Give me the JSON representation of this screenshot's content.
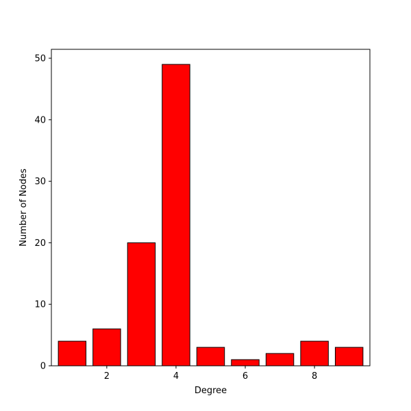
{
  "chart_data": {
    "type": "bar",
    "x": [
      1,
      2,
      3,
      4,
      5,
      6,
      7,
      8,
      9
    ],
    "values": [
      4,
      6,
      20,
      49,
      3,
      1,
      2,
      4,
      3
    ],
    "xlabel": "Degree",
    "ylabel": "Number of Nodes",
    "xlim": [
      0.4,
      9.6
    ],
    "ylim": [
      0,
      51.45
    ],
    "xticks": [
      2,
      4,
      6,
      8
    ],
    "yticks": [
      0,
      10,
      20,
      30,
      40,
      50
    ],
    "bar_color": "#ff0000",
    "edge_color": "#000000",
    "grid": false
  }
}
